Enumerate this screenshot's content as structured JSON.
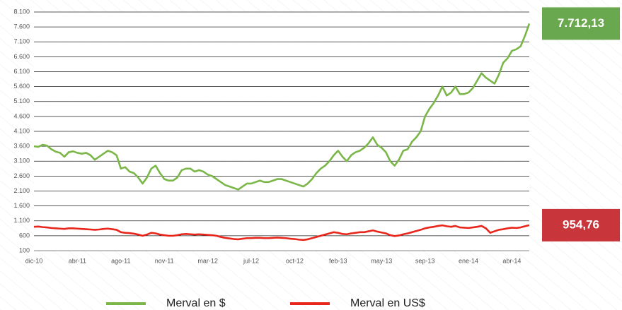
{
  "chart_data": {
    "type": "line",
    "categories": [
      "dic-10",
      null,
      null,
      null,
      null,
      null,
      null,
      null,
      null,
      null,
      "abr-11",
      null,
      null,
      null,
      null,
      null,
      null,
      null,
      null,
      null,
      "ago-11",
      null,
      null,
      null,
      null,
      null,
      null,
      null,
      null,
      null,
      "nov-11",
      null,
      null,
      null,
      null,
      null,
      null,
      null,
      null,
      null,
      "mar-12",
      null,
      null,
      null,
      null,
      null,
      null,
      null,
      null,
      null,
      "jul-12",
      null,
      null,
      null,
      null,
      null,
      null,
      null,
      null,
      null,
      "oct-12",
      null,
      null,
      null,
      null,
      null,
      null,
      null,
      null,
      null,
      "feb-13",
      null,
      null,
      null,
      null,
      null,
      null,
      null,
      null,
      null,
      "may-13",
      null,
      null,
      null,
      null,
      null,
      null,
      null,
      null,
      null,
      "sep-13",
      null,
      null,
      null,
      null,
      null,
      null,
      null,
      null,
      null,
      "ene-14",
      null,
      null,
      null,
      null,
      null,
      null,
      null,
      null,
      null,
      "abr-14",
      null,
      null,
      null,
      null
    ],
    "series": [
      {
        "name": "Merval en $",
        "color": "#7ab648",
        "last_label": "7.712,13",
        "label_color": "#6aa84f",
        "values": [
          3600,
          3580,
          3650,
          3620,
          3500,
          3420,
          3380,
          3250,
          3400,
          3430,
          3380,
          3350,
          3380,
          3300,
          3150,
          3250,
          3350,
          3450,
          3400,
          3300,
          2850,
          2900,
          2750,
          2700,
          2550,
          2350,
          2550,
          2850,
          2950,
          2700,
          2500,
          2450,
          2450,
          2550,
          2800,
          2850,
          2850,
          2750,
          2800,
          2750,
          2650,
          2600,
          2500,
          2400,
          2300,
          2250,
          2200,
          2150,
          2250,
          2350,
          2350,
          2400,
          2450,
          2400,
          2400,
          2450,
          2500,
          2500,
          2450,
          2400,
          2350,
          2300,
          2250,
          2350,
          2500,
          2700,
          2850,
          2950,
          3100,
          3300,
          3450,
          3250,
          3100,
          3300,
          3400,
          3450,
          3550,
          3700,
          3900,
          3650,
          3550,
          3400,
          3100,
          2950,
          3150,
          3450,
          3500,
          3750,
          3900,
          4100,
          4600,
          4850,
          5050,
          5300,
          5600,
          5300,
          5400,
          5600,
          5350,
          5350,
          5400,
          5550,
          5800,
          6050,
          5900,
          5800,
          5700,
          6000,
          6400,
          6550,
          6800,
          6850,
          6950,
          7300,
          7712.13
        ]
      },
      {
        "name": "Merval en US$",
        "color": "#e8261c",
        "last_label": "954,76",
        "label_color": "#c8363c",
        "values": [
          900,
          910,
          890,
          880,
          860,
          850,
          840,
          830,
          850,
          850,
          840,
          830,
          820,
          810,
          800,
          810,
          830,
          840,
          820,
          800,
          720,
          700,
          690,
          670,
          640,
          600,
          640,
          700,
          680,
          640,
          620,
          600,
          600,
          620,
          650,
          660,
          650,
          640,
          650,
          640,
          630,
          620,
          600,
          560,
          530,
          510,
          490,
          480,
          500,
          520,
          520,
          530,
          530,
          520,
          520,
          530,
          540,
          530,
          520,
          500,
          490,
          470,
          460,
          480,
          520,
          560,
          600,
          640,
          680,
          720,
          700,
          660,
          650,
          680,
          700,
          720,
          720,
          750,
          780,
          740,
          710,
          680,
          620,
          590,
          610,
          650,
          680,
          720,
          760,
          800,
          850,
          880,
          900,
          930,
          950,
          920,
          900,
          930,
          880,
          870,
          860,
          880,
          900,
          930,
          850,
          700,
          750,
          800,
          820,
          850,
          870,
          860,
          880,
          920,
          954.76
        ]
      }
    ],
    "ylim": [
      100,
      8100
    ],
    "yticks": [
      100,
      600,
      {
        "value": 1100,
        "label": "1.100"
      },
      {
        "value": 1600,
        "label": "1.600"
      },
      {
        "value": 2100,
        "label": "2.100"
      },
      {
        "value": 2600,
        "label": "2.600"
      },
      {
        "value": 3100,
        "label": "3.100"
      },
      {
        "value": 3600,
        "label": "3.600"
      },
      {
        "value": 4100,
        "label": "4.100"
      },
      {
        "value": 4600,
        "label": "4.600"
      },
      {
        "value": 5100,
        "label": "5.100"
      },
      {
        "value": 5600,
        "label": "5.600"
      },
      {
        "value": 6100,
        "label": "6.100"
      },
      {
        "value": 6600,
        "label": "6.600"
      },
      {
        "value": 7100,
        "label": "7.100"
      },
      {
        "value": 7600,
        "label": "7.600"
      },
      {
        "value": 8100,
        "label": "8.100"
      }
    ],
    "grid": true,
    "legend": "bottom"
  }
}
